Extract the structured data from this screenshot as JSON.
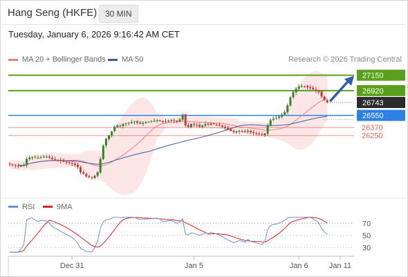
{
  "header": {
    "title": "Hang Seng (HKFE)",
    "timeframe": "30 MIN"
  },
  "datetime": "Tuesday, January 6, 2026 9:16:42 AM CET",
  "credit": "Research © 2026 Trading Central",
  "colors": {
    "up": "#3a7d2a",
    "down": "#c43a3a",
    "resistance": "#5aa01e",
    "support_blue": "#2f80e5",
    "support_red": "#e06666",
    "ma20": "#f08080",
    "ma50": "#3a5a9a",
    "rsi": "#6b8fd6",
    "rsi_ma": "#e02020",
    "arrow": "#2f5fa8"
  },
  "chart_data": [
    {
      "type": "candlestick",
      "title": "",
      "legend": [
        {
          "name": "MA 20 + Bollinger Bands",
          "color": "#f08080"
        },
        {
          "name": "MA 50",
          "color": "#3a5a9a"
        }
      ],
      "ylim": [
        25400,
        27280
      ],
      "x_ticks": [
        "Dec 31",
        "Jan 5",
        "Jan 6",
        "Jan 11"
      ],
      "current_price": 26743,
      "levels": [
        {
          "value": 27150,
          "label": "27150",
          "kind": "resistance"
        },
        {
          "value": 26920,
          "label": "26920",
          "kind": "resistance"
        },
        {
          "value": 26550,
          "label": "26550",
          "kind": "support-blue"
        },
        {
          "value": 26370,
          "label": "26370",
          "kind": "support-red"
        },
        {
          "value": 26250,
          "label": "26250",
          "kind": "support-red"
        }
      ],
      "close": [
        25820,
        25810,
        25800,
        25790,
        25800,
        25805,
        25900,
        25920,
        25930,
        25920,
        25915,
        25925,
        25935,
        25930,
        25920,
        25900,
        25890,
        25880,
        25870,
        25860,
        25850,
        25840,
        25830,
        25810,
        25780,
        25700,
        25680,
        25640,
        25630,
        25620,
        25650,
        25700,
        25900,
        26100,
        26200,
        26250,
        26310,
        26380,
        26400,
        26390,
        26420,
        26430,
        26440,
        26450,
        26460,
        26440,
        26430,
        26440,
        26450,
        26455,
        26460,
        26470,
        26475,
        26470,
        26450,
        26460,
        26470,
        26480,
        26470,
        26460,
        26490,
        26560,
        26400,
        26380,
        26420,
        26410,
        26400,
        26380,
        26400,
        26420,
        26410,
        26430,
        26420,
        26410,
        26400,
        26380,
        26360,
        26340,
        26320,
        26300,
        26310,
        26320,
        26310,
        26300,
        26320,
        26300,
        26290,
        26280,
        26270,
        26260,
        26280,
        26400,
        26480,
        26500,
        26510,
        26530,
        26560,
        26600,
        26700,
        26820,
        26900,
        26950,
        26980,
        26990,
        26985,
        26970,
        26960,
        26940,
        26920,
        26900,
        26830,
        26780,
        26743
      ]
    },
    {
      "type": "line",
      "title": "",
      "legend": [
        {
          "name": "RSI",
          "color": "#6b8fd6"
        },
        {
          "name": "9MA",
          "color": "#e02020"
        }
      ],
      "ylim": [
        20,
        82
      ],
      "y_ticks": [
        70,
        50,
        30
      ]
    }
  ]
}
